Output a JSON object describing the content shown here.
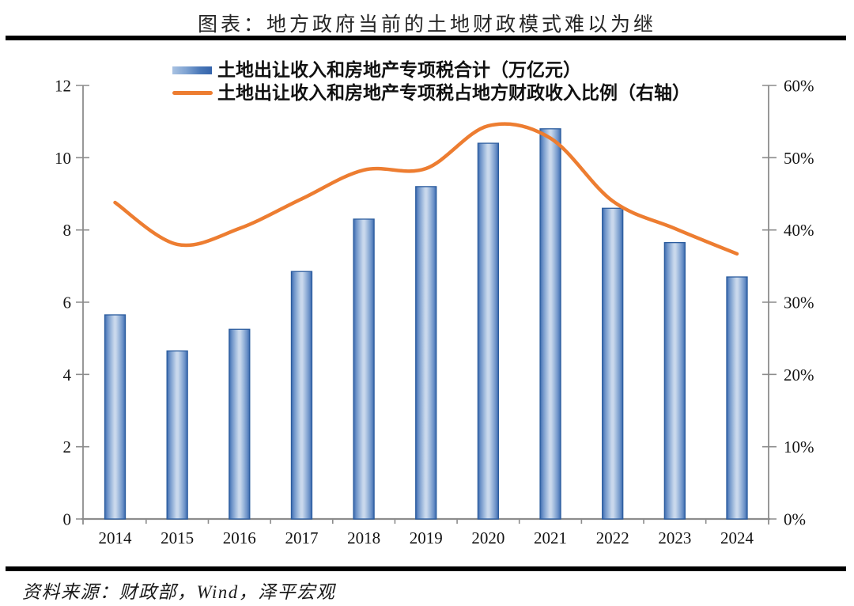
{
  "header": {
    "title": "图表：地方政府当前的土地财政模式难以为继"
  },
  "legend": {
    "items": [
      {
        "label": "土地出让收入和房地产专项税合计（万亿元）",
        "marker": "bar-swatch"
      },
      {
        "label": "土地出让收入和房地产专项税占地方财政收入比例（右轴）",
        "marker": "line-swatch"
      }
    ]
  },
  "chart_data": {
    "type": "bar",
    "title": "图表：地方政府当前的土地财政模式难以为继",
    "categories": [
      "2014",
      "2015",
      "2016",
      "2017",
      "2018",
      "2019",
      "2020",
      "2021",
      "2022",
      "2023",
      "2024"
    ],
    "series": [
      {
        "name": "土地出让收入和房地产专项税合计（万亿元）",
        "type": "bar",
        "axis": "left",
        "unit": "万亿元",
        "values": [
          5.65,
          4.65,
          5.25,
          6.85,
          8.3,
          9.2,
          10.4,
          10.8,
          8.6,
          7.65,
          6.7
        ]
      },
      {
        "name": "土地出让收入和房地产专项税占地方财政收入比例（右轴）",
        "type": "line",
        "axis": "right",
        "unit": "%",
        "values": [
          43.8,
          38.0,
          40.2,
          44.3,
          48.3,
          48.5,
          54.4,
          52.7,
          44.0,
          40.2,
          36.7
        ]
      }
    ],
    "left_axis": {
      "min": 0,
      "max": 12,
      "tick_labels": [
        "0",
        "2",
        "4",
        "6",
        "8",
        "10",
        "12"
      ]
    },
    "right_axis": {
      "min": 0,
      "max": 60,
      "tick_labels": [
        "0%",
        "10%",
        "20%",
        "30%",
        "40%",
        "50%",
        "60%"
      ]
    },
    "grid": false,
    "legend_position": "top-left",
    "smooth_line": true
  },
  "footer": {
    "source": "资料来源：财政部，Wind，泽平宏观"
  },
  "colors": {
    "bar_fill_light": "#c9d8ec",
    "bar_fill_mid": "#6c92c8",
    "bar_fill_dark": "#3a69ae",
    "bar_border": "#2b5c9e",
    "line": "#ed7d31",
    "axis": "#8c8c8c",
    "tick_text": "#141414",
    "title_text": "#262626",
    "rule": "#000000"
  }
}
